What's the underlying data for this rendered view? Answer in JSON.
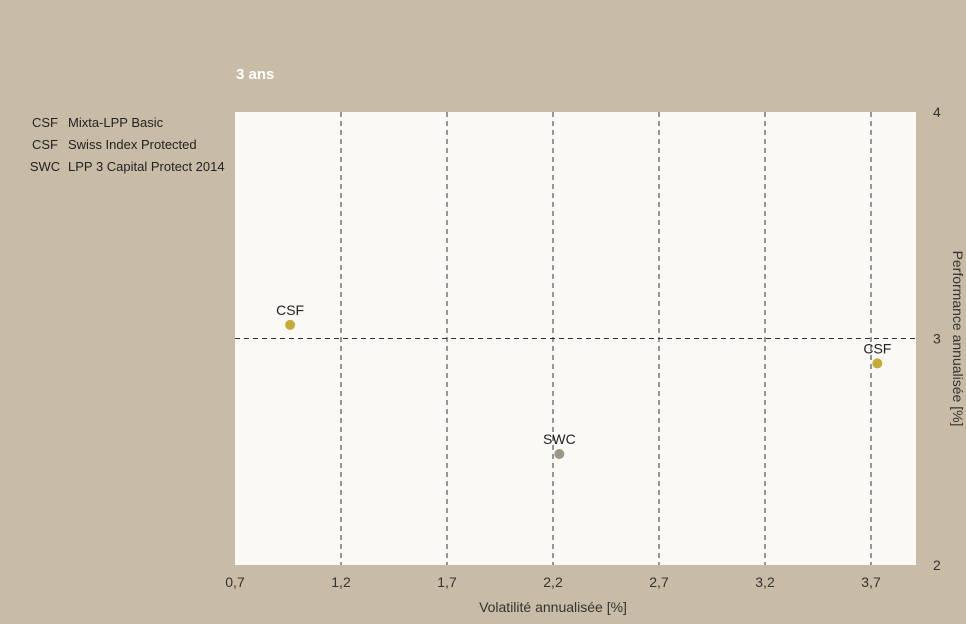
{
  "chart_data": {
    "type": "scatter",
    "title": "3 ans",
    "xlabel": "Volatilité annualisée [%]",
    "ylabel": "Performance annualisée [%]",
    "xlim": [
      0.7,
      3.9
    ],
    "ylim": [
      2,
      4
    ],
    "xticks": [
      0.7,
      1.2,
      1.7,
      2.2,
      2.7,
      3.2,
      3.7
    ],
    "xtick_labels": [
      "0,7",
      "1,2",
      "1,7",
      "2,2",
      "2,7",
      "3,2",
      "3,7"
    ],
    "yticks": [
      2,
      3,
      4
    ],
    "ytick_labels": [
      "2",
      "3",
      "4"
    ],
    "grid": "dashed",
    "legend_placement": "left",
    "legend": [
      {
        "code": "CSF",
        "name": "Mixta-LPP Basic"
      },
      {
        "code": "CSF",
        "name": "Swiss Index Protected"
      },
      {
        "code": "SWC",
        "name": "LPP 3 Capital Protect 2014"
      }
    ],
    "points": [
      {
        "label": "CSF",
        "x": 0.96,
        "y": 3.06,
        "color": "#c4ab3c"
      },
      {
        "label": "CSF",
        "x": 3.73,
        "y": 2.89,
        "color": "#c4ab3c"
      },
      {
        "label": "SWC",
        "x": 2.23,
        "y": 2.49,
        "color": "#9d9585"
      }
    ]
  }
}
